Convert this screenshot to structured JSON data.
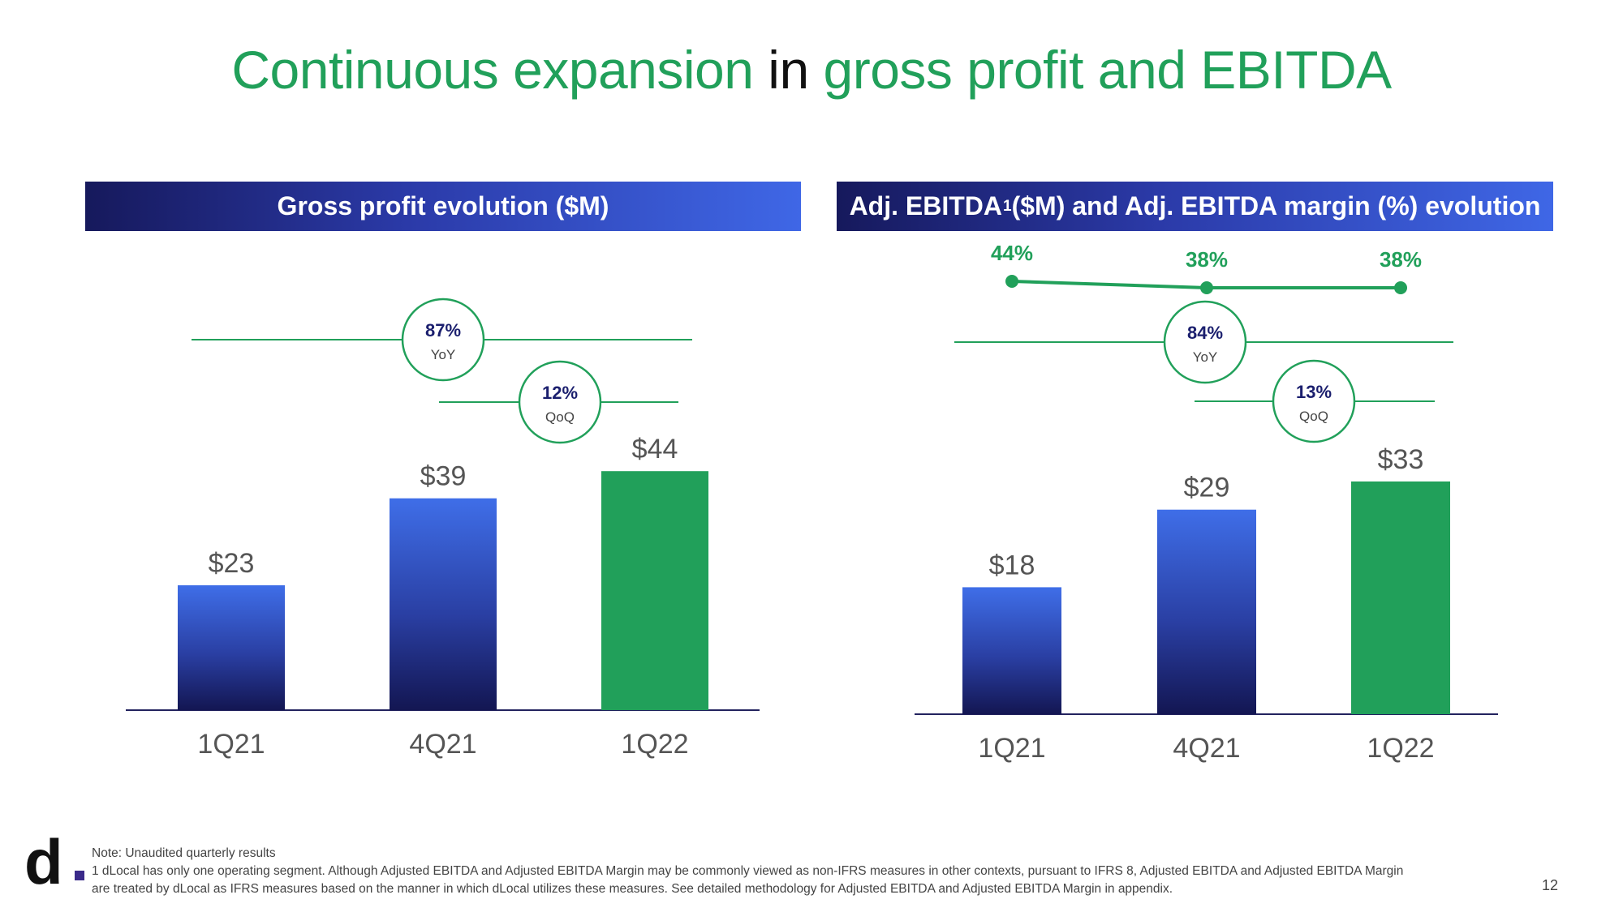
{
  "title": {
    "part1": "Continuous expansion",
    "part2": " in ",
    "part3": "gross profit and EBITDA"
  },
  "colors": {
    "green": "#21a05a",
    "navy": "#16195c",
    "blue": "#3f6ee8"
  },
  "left_panel": {
    "header": "Gross profit evolution ($M)"
  },
  "right_panel": {
    "header_main": "Adj. EBITDA",
    "header_sup": "1",
    "header_rest": " ($M) and Adj. EBITDA margin (%) evolution"
  },
  "chart_data": [
    {
      "type": "bar",
      "categories": [
        "1Q21",
        "4Q21",
        "1Q22"
      ],
      "values": [
        23,
        39,
        44
      ],
      "value_labels": [
        "$23",
        "$39",
        "$44"
      ],
      "bar_colors": [
        "gradient-blue",
        "gradient-blue",
        "#21a05a"
      ],
      "growth": [
        {
          "value": "87%",
          "label": "YoY"
        },
        {
          "value": "12%",
          "label": "QoQ"
        }
      ]
    },
    {
      "type": "bar",
      "categories": [
        "1Q21",
        "4Q21",
        "1Q22"
      ],
      "values": [
        18,
        29,
        33
      ],
      "value_labels": [
        "$18",
        "$29",
        "$33"
      ],
      "bar_colors": [
        "gradient-blue",
        "gradient-blue",
        "#21a05a"
      ],
      "margin_line": {
        "values": [
          44,
          38,
          38
        ],
        "labels": [
          "44%",
          "38%",
          "38%"
        ]
      },
      "growth": [
        {
          "value": "84%",
          "label": "YoY"
        },
        {
          "value": "13%",
          "label": "QoQ"
        }
      ]
    }
  ],
  "footer": {
    "logo": "d",
    "note1": "Note: Unaudited quarterly results",
    "note2": "1 dLocal has only one operating segment. Although Adjusted EBITDA and Adjusted EBITDA Margin may be commonly viewed as non-IFRS measures in other contexts, pursuant to IFRS 8, Adjusted EBITDA and Adjusted EBITDA Margin",
    "note3": "are treated by dLocal as IFRS measures based on the manner in which dLocal utilizes these measures. See detailed methodology for Adjusted EBITDA and Adjusted EBITDA Margin in appendix.",
    "page_number": "12"
  }
}
